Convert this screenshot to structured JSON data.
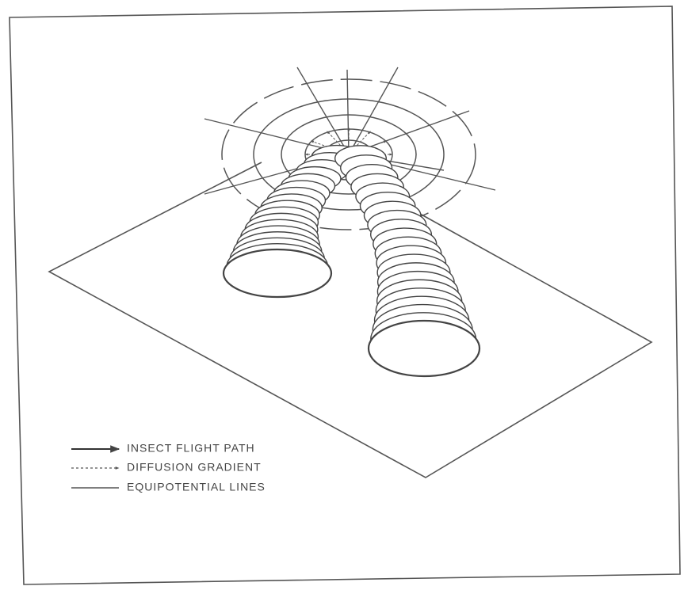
{
  "legend": [
    "INSECT FLIGHT PATH",
    "DIFFUSION GRADIENT",
    "EQUIPOTENTIAL LINES"
  ]
}
